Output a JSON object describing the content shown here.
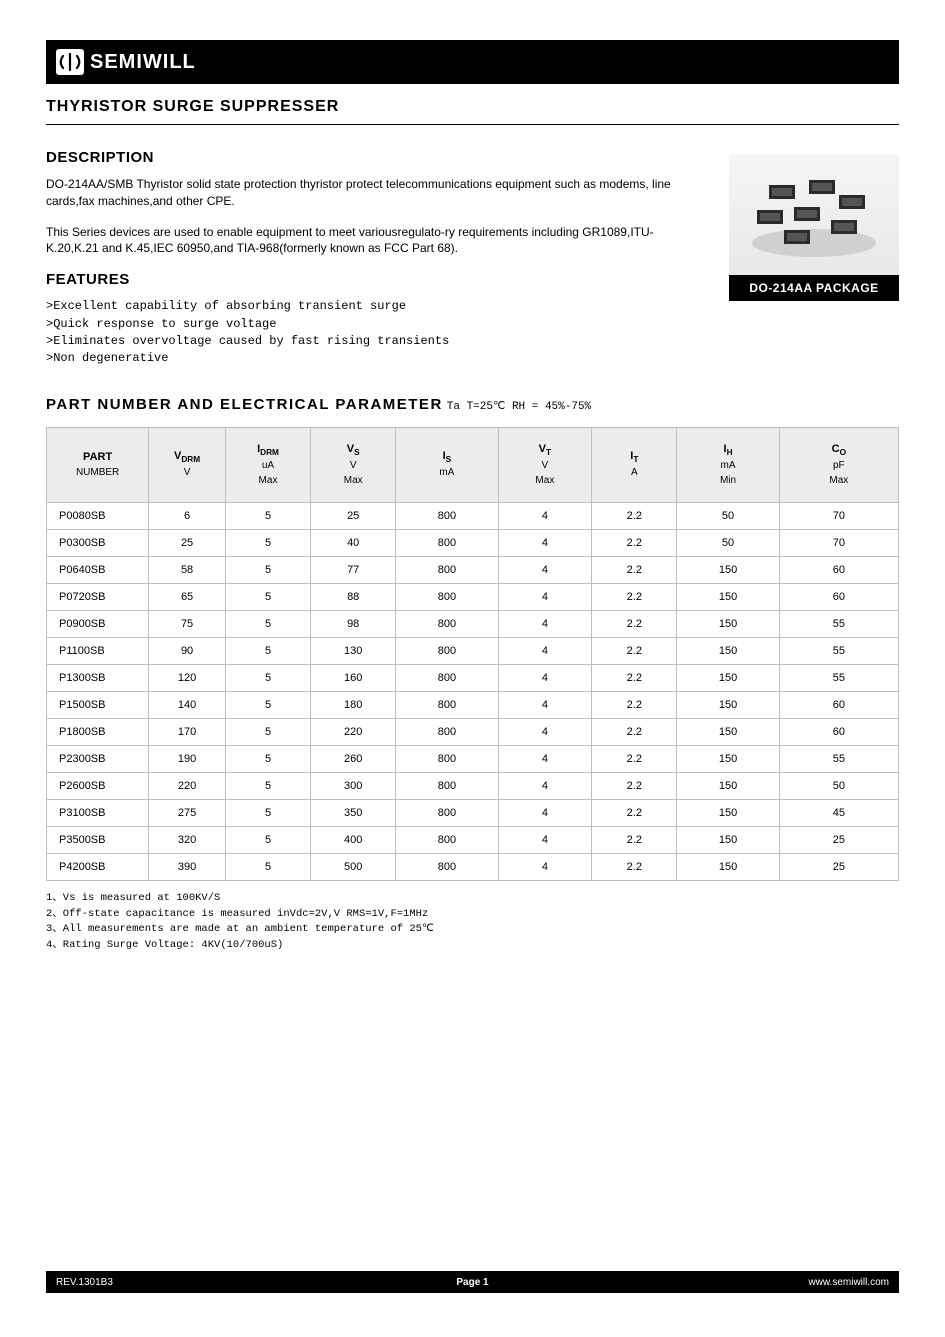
{
  "brand": {
    "name": "SEMIWILL"
  },
  "product_title": "THYRISTOR SURGE SUPPRESSER",
  "description": {
    "heading": "DESCRIPTION",
    "p1": "DO-214AA/SMB Thyristor solid state protection thyristor protect  telecommunications equipment such as modems, line cards,fax machines,and other CPE.",
    "p2": "This Series devices are used to enable equipment to meet  variousregulato-ry requirements including GR1089,ITU-K.20,K.21 and K.45,IEC 60950,and TIA-968(formerly known as FCC Part 68)."
  },
  "features": {
    "heading": "FEATURES",
    "items": [
      ">Excellent capability of absorbing transient surge",
      ">Quick response to surge voltage",
      ">Eliminates overvoltage caused by fast rising transients",
      ">Non degenerative"
    ]
  },
  "package": {
    "label": "DO-214AA PACKAGE"
  },
  "param_section": {
    "heading": "PART NUMBER AND ELECTRICAL PARAMETER",
    "condition": "Ta T=25℃ RH = 45%-75%"
  },
  "table": {
    "columns": [
      {
        "l1": "PART",
        "l2": "NUMBER",
        "l3": ""
      },
      {
        "l1": "V",
        "sub1": "DRM",
        "l2": "V",
        "l3": ""
      },
      {
        "l1": "I",
        "sub1": "DRM",
        "l2": "uA",
        "l3": "Max"
      },
      {
        "l1": "V",
        "sub1": "S",
        "l2": "V",
        "l3": "Max"
      },
      {
        "l1": "I",
        "sub1": "S",
        "l2": "mA",
        "l3": ""
      },
      {
        "l1": "V",
        "sub1": "T",
        "l2": "V",
        "l3": "Max"
      },
      {
        "l1": "I",
        "sub1": "T",
        "l2": "A",
        "l3": ""
      },
      {
        "l1": "I",
        "sub1": "H",
        "l2": "mA",
        "l3": "Min"
      },
      {
        "l1": "C",
        "sub1": "O",
        "l2": "pF",
        "l3": "Max"
      }
    ],
    "rows": [
      [
        "P0080SB",
        "6",
        "5",
        "25",
        "800",
        "4",
        "2.2",
        "50",
        "70"
      ],
      [
        "P0300SB",
        "25",
        "5",
        "40",
        "800",
        "4",
        "2.2",
        "50",
        "70"
      ],
      [
        "P0640SB",
        "58",
        "5",
        "77",
        "800",
        "4",
        "2.2",
        "150",
        "60"
      ],
      [
        "P0720SB",
        "65",
        "5",
        "88",
        "800",
        "4",
        "2.2",
        "150",
        "60"
      ],
      [
        "P0900SB",
        "75",
        "5",
        "98",
        "800",
        "4",
        "2.2",
        "150",
        "55"
      ],
      [
        "P1100SB",
        "90",
        "5",
        "130",
        "800",
        "4",
        "2.2",
        "150",
        "55"
      ],
      [
        "P1300SB",
        "120",
        "5",
        "160",
        "800",
        "4",
        "2.2",
        "150",
        "55"
      ],
      [
        "P1500SB",
        "140",
        "5",
        "180",
        "800",
        "4",
        "2.2",
        "150",
        "60"
      ],
      [
        "P1800SB",
        "170",
        "5",
        "220",
        "800",
        "4",
        "2.2",
        "150",
        "60"
      ],
      [
        "P2300SB",
        "190",
        "5",
        "260",
        "800",
        "4",
        "2.2",
        "150",
        "55"
      ],
      [
        "P2600SB",
        "220",
        "5",
        "300",
        "800",
        "4",
        "2.2",
        "150",
        "50"
      ],
      [
        "P3100SB",
        "275",
        "5",
        "350",
        "800",
        "4",
        "2.2",
        "150",
        "45"
      ],
      [
        "P3500SB",
        "320",
        "5",
        "400",
        "800",
        "4",
        "2.2",
        "150",
        "25"
      ],
      [
        "P4200SB",
        "390",
        "5",
        "500",
        "800",
        "4",
        "2.2",
        "150",
        "25"
      ]
    ],
    "col_widths_pct": [
      12,
      9,
      10,
      10,
      12,
      11,
      10,
      12,
      14
    ],
    "header_bg": "#ececec",
    "border_color": "#bfbfbf"
  },
  "notes": [
    "1、Vs is measured at 100KV/S",
    "2、Off-state capacitance is measured inVdc=2V,V RMS=1V,F=1MHz",
    "3、All measurements are made at an ambient temperature of 25℃",
    "4、Rating Surge Voltage: 4KV(10/700uS)"
  ],
  "footer": {
    "left": "REV.1301B3",
    "center": "Page 1",
    "right": "www.semiwill.com"
  }
}
